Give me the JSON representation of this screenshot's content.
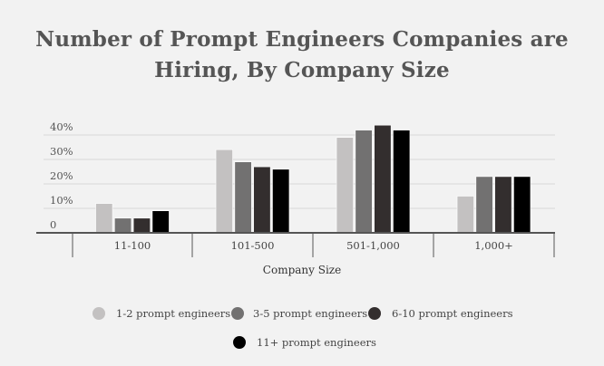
{
  "chart_data": {
    "type": "bar",
    "title_line1": "Number of Prompt Engineers Companies are",
    "title_line2": "Hiring, By Company Size",
    "xlabel": "Company Size",
    "ylabel": "",
    "categories": [
      "11-100",
      "101-500",
      "501-1,000",
      "1,000+"
    ],
    "ylim": [
      0,
      45
    ],
    "yticks": [
      0,
      10,
      20,
      30,
      40
    ],
    "ytick_labels": [
      "0",
      "10%",
      "20%",
      "30%",
      "40%"
    ],
    "grid": true,
    "legend_position": "bottom",
    "series": [
      {
        "name": "1-2 prompt engineers",
        "color": "#c3c1c1",
        "values": [
          12,
          34,
          39,
          15
        ]
      },
      {
        "name": "3-5 prompt engineers",
        "color": "#727171",
        "values": [
          6,
          29,
          42,
          23
        ]
      },
      {
        "name": "6-10 prompt engineers",
        "color": "#332e2e",
        "values": [
          6,
          27,
          44,
          23
        ]
      },
      {
        "name": "11+ prompt engineers",
        "color": "#000000",
        "values": [
          9,
          26,
          42,
          23
        ]
      }
    ]
  }
}
